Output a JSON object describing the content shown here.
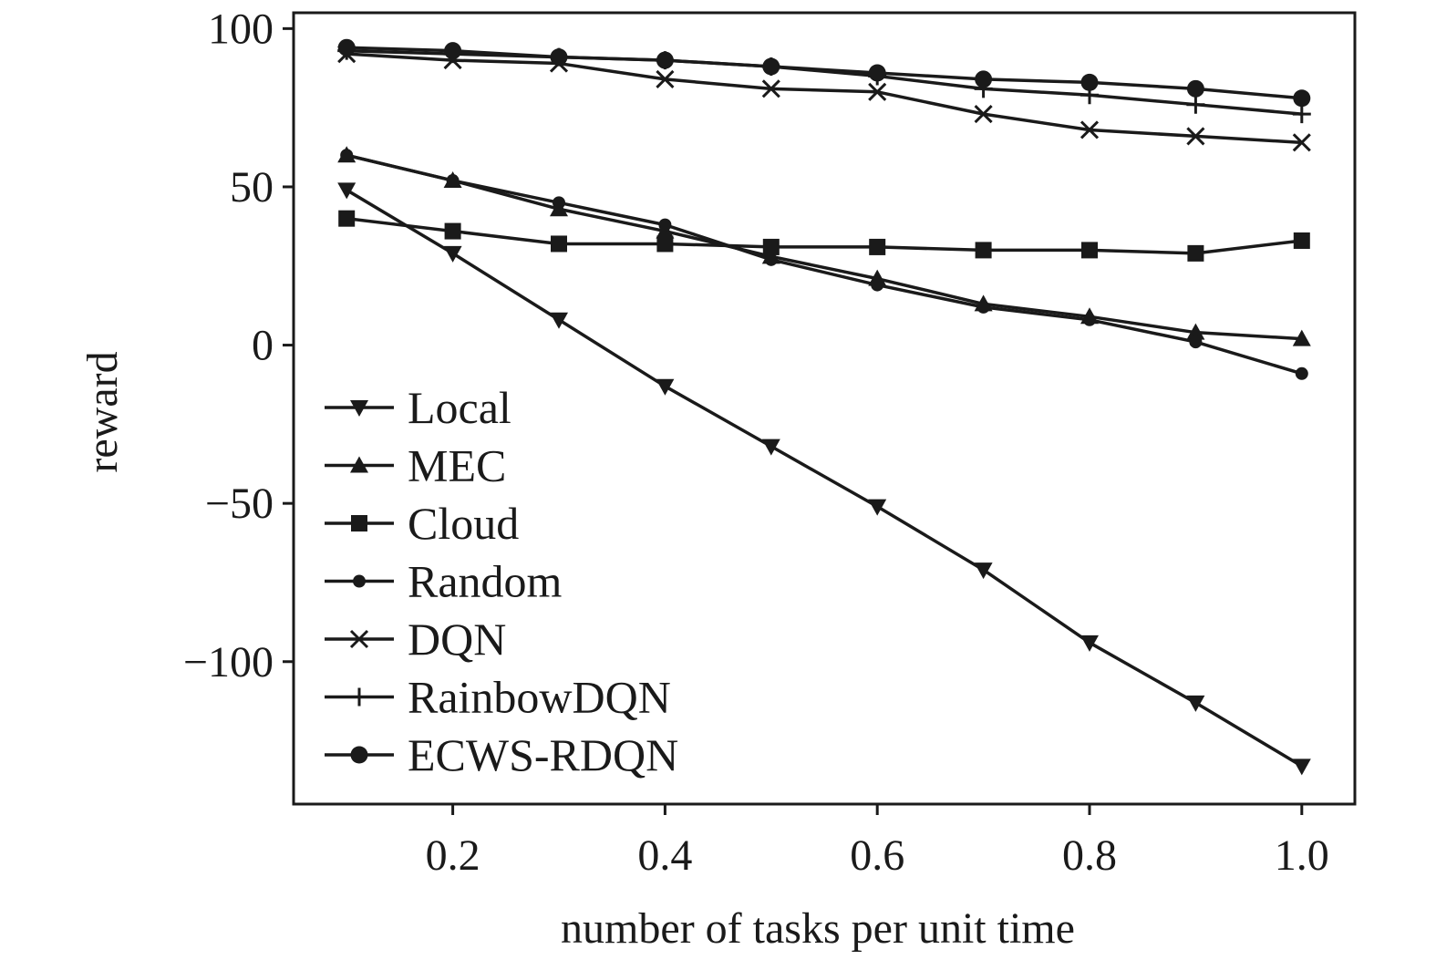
{
  "chart_data": {
    "type": "line",
    "title": "",
    "xlabel": "number of tasks per unit time",
    "ylabel": "reward",
    "xlim": [
      0.05,
      1.05
    ],
    "ylim": [
      -145,
      105
    ],
    "x_ticks": [
      0.2,
      0.4,
      0.6,
      0.8,
      1.0
    ],
    "x_tick_labels": [
      "0.2",
      "0.4",
      "0.6",
      "0.8",
      "1.0"
    ],
    "y_ticks": [
      100,
      50,
      0,
      -50,
      -100
    ],
    "y_tick_labels": [
      "100",
      "50",
      "0",
      "−50",
      "−100"
    ],
    "grid": false,
    "legend_position": "lower-left",
    "line_color": "#1a1a1a",
    "x": [
      0.1,
      0.2,
      0.3,
      0.4,
      0.5,
      0.6,
      0.7,
      0.8,
      0.9,
      1.0
    ],
    "series": [
      {
        "name": "Local",
        "marker": "triangle-down",
        "values": [
          49,
          29,
          8,
          -13,
          -32,
          -51,
          -71,
          -94,
          -113,
          -133
        ]
      },
      {
        "name": "MEC",
        "marker": "triangle-up",
        "values": [
          60,
          52,
          43,
          36,
          28,
          21,
          13,
          9,
          4,
          2
        ]
      },
      {
        "name": "Cloud",
        "marker": "square",
        "values": [
          40,
          36,
          32,
          32,
          31,
          31,
          30,
          30,
          29,
          33
        ]
      },
      {
        "name": "Random",
        "marker": "small-circle",
        "values": [
          60,
          52,
          45,
          38,
          27,
          19,
          12,
          8,
          1,
          -9
        ]
      },
      {
        "name": "DQN",
        "marker": "x",
        "values": [
          92,
          90,
          89,
          84,
          81,
          80,
          73,
          68,
          66,
          64
        ]
      },
      {
        "name": "RainbowDQN",
        "marker": "plus",
        "values": [
          93,
          92,
          91,
          90,
          88,
          85,
          81,
          79,
          76,
          73
        ]
      },
      {
        "name": "ECWS-RDQN",
        "marker": "circle",
        "values": [
          94,
          93,
          91,
          90,
          88,
          86,
          84,
          83,
          81,
          78
        ]
      }
    ]
  }
}
